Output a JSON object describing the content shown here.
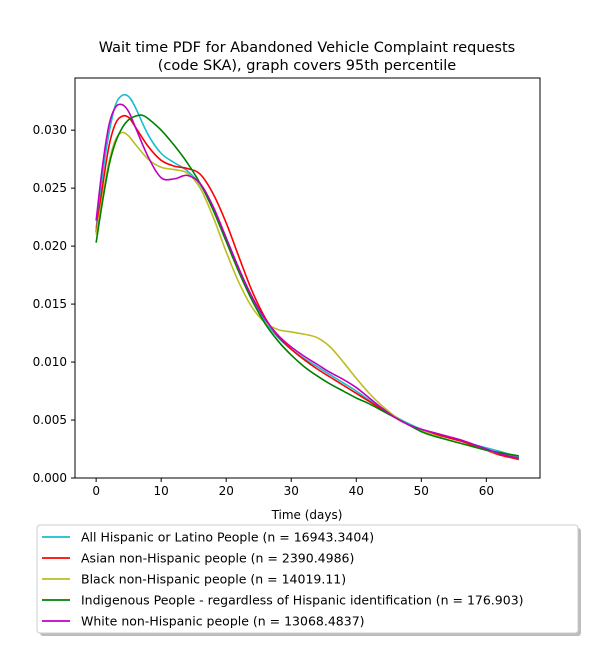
{
  "chart_data": {
    "type": "line",
    "title_line1": "Wait time PDF for Abandoned Vehicle Complaint  requests",
    "title_line2": "(code SKA), graph covers 95th percentile",
    "xlabel": "Time (days)",
    "ylabel": "",
    "xlim": [
      -3.25,
      68.25
    ],
    "ylim": [
      0,
      0.0345
    ],
    "x_ticks": [
      0,
      10,
      20,
      30,
      40,
      50,
      60
    ],
    "x_tick_labels": [
      "0",
      "10",
      "20",
      "30",
      "40",
      "50",
      "60"
    ],
    "y_ticks": [
      0,
      0.005,
      0.01,
      0.015,
      0.02,
      0.025,
      0.03
    ],
    "y_tick_labels": [
      "0.000",
      "0.005",
      "0.010",
      "0.015",
      "0.020",
      "0.025",
      "0.030"
    ],
    "grid": false,
    "legend_position": "below",
    "series": [
      {
        "name": "All Hispanic or Latino People (n = 16943.3404)",
        "color": "#17becf",
        "x": [
          0,
          1,
          2,
          3,
          4,
          5,
          6,
          8,
          10,
          12,
          14,
          16,
          18,
          20,
          22,
          24,
          26,
          28,
          30,
          32,
          34,
          36,
          38,
          40,
          42,
          44,
          46,
          48,
          50,
          52,
          54,
          56,
          58,
          60,
          62,
          65
        ],
        "y": [
          0.0215,
          0.0262,
          0.0298,
          0.0322,
          0.033,
          0.0329,
          0.032,
          0.0296,
          0.028,
          0.0272,
          0.0265,
          0.0253,
          0.0233,
          0.0207,
          0.018,
          0.0155,
          0.0135,
          0.0121,
          0.0111,
          0.0103,
          0.0096,
          0.0089,
          0.0082,
          0.0075,
          0.0067,
          0.006,
          0.0053,
          0.0047,
          0.0042,
          0.0038,
          0.0035,
          0.0032,
          0.0029,
          0.0026,
          0.0023,
          0.0018
        ]
      },
      {
        "name": "Asian non-Hispanic people (n = 2390.4986)",
        "color": "#ff0000",
        "x": [
          0,
          1,
          2,
          3,
          4,
          5,
          6,
          8,
          10,
          12,
          14,
          16,
          18,
          20,
          22,
          24,
          26,
          28,
          30,
          32,
          34,
          36,
          38,
          40,
          42,
          44,
          46,
          48,
          50,
          52,
          54,
          56,
          58,
          60,
          62,
          65
        ],
        "y": [
          0.0212,
          0.0252,
          0.0287,
          0.0306,
          0.0312,
          0.0311,
          0.0303,
          0.0286,
          0.0274,
          0.0269,
          0.0267,
          0.0262,
          0.0245,
          0.022,
          0.019,
          0.0161,
          0.0138,
          0.0122,
          0.0111,
          0.0102,
          0.0094,
          0.0087,
          0.008,
          0.0073,
          0.0066,
          0.0059,
          0.0052,
          0.0046,
          0.0041,
          0.0038,
          0.0035,
          0.0032,
          0.0028,
          0.0024,
          0.002,
          0.0016
        ]
      },
      {
        "name": "Black non-Hispanic people (n = 14019.11)",
        "color": "#bcbd22",
        "x": [
          0,
          1,
          2,
          3,
          4,
          5,
          6,
          8,
          10,
          12,
          14,
          16,
          18,
          20,
          22,
          24,
          26,
          28,
          30,
          32,
          34,
          36,
          38,
          40,
          42,
          44,
          46,
          48,
          50,
          52,
          54,
          56,
          58,
          60,
          62,
          65
        ],
        "y": [
          0.021,
          0.0243,
          0.0273,
          0.0292,
          0.0298,
          0.0295,
          0.0288,
          0.0275,
          0.0268,
          0.0266,
          0.0263,
          0.025,
          0.0225,
          0.0195,
          0.0168,
          0.0147,
          0.0134,
          0.0128,
          0.0126,
          0.0124,
          0.0121,
          0.0113,
          0.01,
          0.0086,
          0.0073,
          0.0062,
          0.0053,
          0.0046,
          0.0041,
          0.0037,
          0.0033,
          0.003,
          0.0027,
          0.0024,
          0.0021,
          0.0017
        ]
      },
      {
        "name": "Indigenous People - regardless of Hispanic identification (n = 176.903)",
        "color": "#008000",
        "x": [
          0,
          1,
          2,
          3,
          4,
          5,
          6,
          7,
          8,
          10,
          12,
          14,
          16,
          18,
          20,
          22,
          24,
          26,
          28,
          30,
          32,
          34,
          36,
          38,
          40,
          42,
          44,
          46,
          48,
          50,
          52,
          54,
          56,
          58,
          60,
          62,
          65
        ],
        "y": [
          0.0203,
          0.0239,
          0.027,
          0.029,
          0.0302,
          0.0309,
          0.0312,
          0.0313,
          0.031,
          0.03,
          0.0287,
          0.0272,
          0.0254,
          0.0231,
          0.0204,
          0.0177,
          0.0153,
          0.0133,
          0.0118,
          0.0106,
          0.0096,
          0.0088,
          0.0081,
          0.0075,
          0.0069,
          0.0064,
          0.0058,
          0.0052,
          0.0046,
          0.004,
          0.0036,
          0.0033,
          0.003,
          0.0027,
          0.0024,
          0.0022,
          0.0019
        ]
      },
      {
        "name": "White non-Hispanic people (n = 13068.4837)",
        "color": "#bf00bf",
        "x": [
          0,
          1,
          2,
          3,
          4,
          5,
          6,
          8,
          10,
          12,
          14,
          16,
          18,
          20,
          22,
          24,
          26,
          28,
          30,
          32,
          34,
          36,
          38,
          40,
          42,
          44,
          46,
          48,
          50,
          52,
          54,
          56,
          58,
          60,
          62,
          65
        ],
        "y": [
          0.0222,
          0.027,
          0.0305,
          0.032,
          0.0322,
          0.0316,
          0.0303,
          0.0277,
          0.0259,
          0.0258,
          0.0261,
          0.0254,
          0.0234,
          0.0207,
          0.018,
          0.0156,
          0.0137,
          0.0123,
          0.0113,
          0.0105,
          0.0098,
          0.0091,
          0.0085,
          0.0078,
          0.0069,
          0.006,
          0.0052,
          0.0046,
          0.0042,
          0.0039,
          0.0036,
          0.0033,
          0.0029,
          0.0025,
          0.0021,
          0.0017
        ]
      }
    ]
  }
}
